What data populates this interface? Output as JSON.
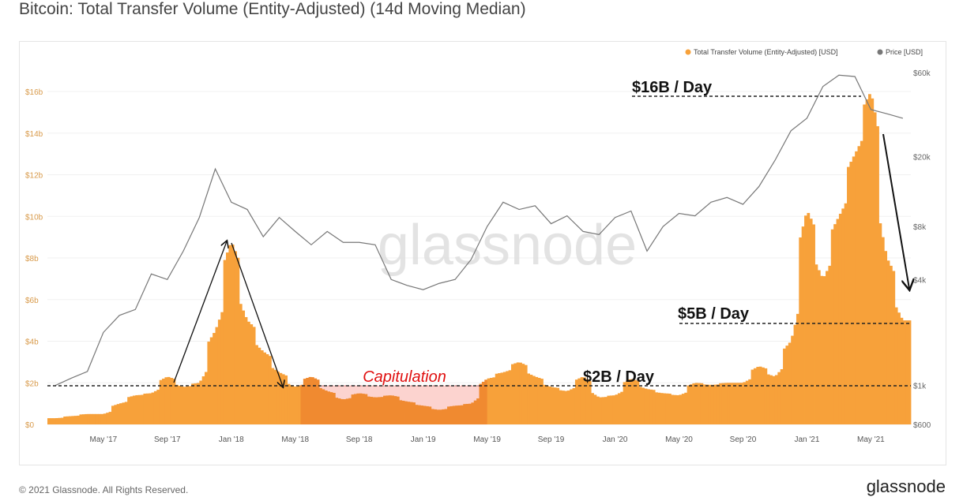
{
  "title": "Bitcoin: Total Transfer Volume (Entity-Adjusted) (14d Moving Median)",
  "footer": "© 2021 Glassnode. All Rights Reserved.",
  "logo": "glassnode",
  "watermark": "glassnode",
  "colors": {
    "volume": "#f7a13a",
    "capitulation_volume": "#f08a30",
    "capitulation_bg": "#fcd3cf",
    "price": "#777777"
  },
  "chart_data": {
    "type": "area",
    "title": "Bitcoin: Total Transfer Volume (Entity-Adjusted) (14d Moving Median)",
    "legend": [
      "Total Transfer Volume (Entity-Adjusted) [USD]",
      "Price [USD]"
    ],
    "legend_position": "top-right",
    "x_ticks": [
      "May '17",
      "Sep '17",
      "Jan '18",
      "May '18",
      "Sep '18",
      "Jan '19",
      "May '19",
      "Sep '19",
      "Jan '20",
      "May '20",
      "Sep '20",
      "Jan '21",
      "May '21"
    ],
    "y_left_ticks": [
      "$0",
      "$2b",
      "$4b",
      "$6b",
      "$8b",
      "$10b",
      "$12b",
      "$14b",
      "$16b"
    ],
    "y_right_ticks": [
      "$600",
      "$1k",
      "$4k",
      "$8k",
      "$20k",
      "$60k"
    ],
    "months": [
      "Feb 17",
      "Mar 17",
      "Apr 17",
      "May 17",
      "Jun 17",
      "Jul 17",
      "Aug 17",
      "Sep 17",
      "Oct 17",
      "Nov 17",
      "Dec 17",
      "Jan 18",
      "Feb 18",
      "Mar 18",
      "Apr 18",
      "May 18",
      "Jun 18",
      "Jul 18",
      "Aug 18",
      "Sep 18",
      "Oct 18",
      "Nov 18",
      "Dec 18",
      "Jan 19",
      "Feb 19",
      "Mar 19",
      "Apr 19",
      "May 19",
      "Jun 19",
      "Jul 19",
      "Aug 19",
      "Sep 19",
      "Oct 19",
      "Nov 19",
      "Dec 19",
      "Jan 20",
      "Feb 20",
      "Mar 20",
      "Apr 20",
      "May 20",
      "Jun 20",
      "Jul 20",
      "Aug 20",
      "Sep 20",
      "Oct 20",
      "Nov 20",
      "Dec 20",
      "Jan 21",
      "Feb 21",
      "Mar 21",
      "Apr 21",
      "May 21",
      "Jun 21",
      "Jul 21"
    ],
    "volume_busd": [
      0.3,
      0.4,
      0.5,
      0.5,
      1.0,
      1.4,
      1.5,
      2.3,
      1.8,
      2.0,
      4.5,
      8.8,
      5.0,
      3.5,
      2.5,
      1.8,
      2.3,
      1.6,
      1.2,
      1.5,
      1.3,
      1.4,
      1.1,
      0.9,
      0.7,
      0.9,
      1.0,
      2.2,
      2.5,
      3.0,
      2.3,
      1.8,
      1.6,
      2.3,
      1.3,
      1.4,
      2.2,
      1.7,
      1.5,
      1.4,
      2.0,
      1.9,
      2.0,
      2.0,
      2.8,
      2.3,
      4.0,
      10.3,
      7.0,
      10.0,
      13.0,
      16.0,
      8.0,
      5.0
    ],
    "price_usd": [
      1000,
      1100,
      1200,
      2000,
      2500,
      2700,
      4300,
      4000,
      5800,
      9000,
      17000,
      11000,
      10000,
      7000,
      9000,
      7500,
      6300,
      7500,
      6500,
      6500,
      6300,
      4000,
      3700,
      3500,
      3800,
      4000,
      5200,
      8000,
      11000,
      10000,
      10500,
      8300,
      9200,
      7500,
      7200,
      9000,
      9800,
      5800,
      8000,
      9500,
      9200,
      11000,
      11700,
      10700,
      13500,
      19000,
      28000,
      33000,
      50000,
      58000,
      57000,
      37000,
      35000,
      33000
    ],
    "y_left_range": [
      0,
      16
    ],
    "y_right_range": [
      600,
      60000
    ],
    "y_right_scale": "log",
    "annotations": {
      "line_2b": "$2B / Day",
      "line_5b": "$5B / Day",
      "line_16b": "$16B / Day",
      "capitulation": "Capitulation"
    }
  }
}
